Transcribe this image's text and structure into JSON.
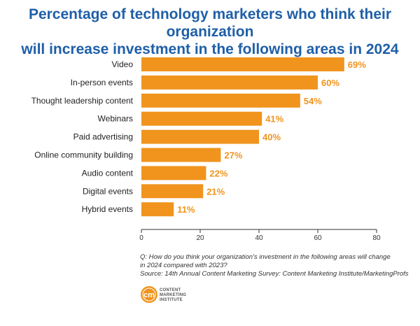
{
  "title": {
    "line1": "Percentage of technology marketers who think their organization",
    "line2": "will increase investment in the following areas in 2024"
  },
  "chart_data": {
    "type": "bar",
    "orientation": "horizontal",
    "categories": [
      "Video",
      "In-person events",
      "Thought leadership content",
      "Webinars",
      "Paid advertising",
      "Online community building",
      "Audio content",
      "Digital events",
      "Hybrid events"
    ],
    "values": [
      69,
      60,
      54,
      41,
      40,
      27,
      22,
      21,
      11
    ],
    "value_labels": [
      "69%",
      "60%",
      "54%",
      "41%",
      "40%",
      "27%",
      "22%",
      "21%",
      "11%"
    ],
    "xlim": [
      0,
      80
    ],
    "xticks": [
      0,
      20,
      40,
      60,
      80
    ],
    "grid": false,
    "bar_color": "#f0941e",
    "label_color": "#f0941e"
  },
  "notes": {
    "question_line1": "Q: How do you think your organization's investment in the following areas will change",
    "question_line2": "in 2024 compared with 2023?",
    "source": "Source: 14th Annual Content Marketing Survey: Content Marketing Institute/MarketingProfs"
  },
  "logo": {
    "mark": "cm",
    "line1": "CONTENT",
    "line2": "MARKETING",
    "line3": "INSTITUTE"
  }
}
